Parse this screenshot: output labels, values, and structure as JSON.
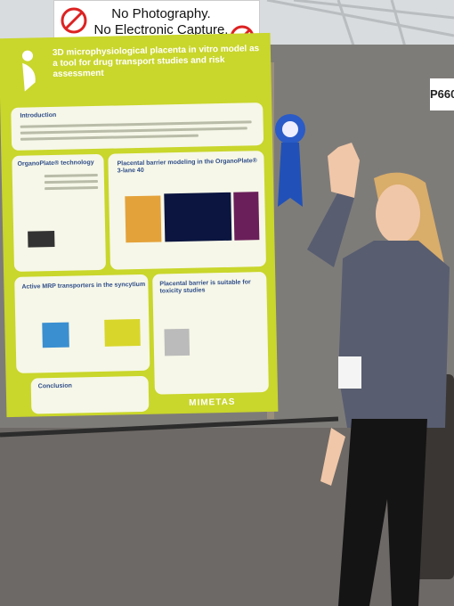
{
  "sign": {
    "lines": [
      "No Photography.",
      "No Electronic Capture."
    ]
  },
  "booth": "P660",
  "poster": {
    "title": "3D microphysiological placenta in vitro model as a tool for drug transport studies and risk assessment",
    "sections": [
      "Introduction",
      "OrganoPlate® technology",
      "Placental barrier modeling in the OrganoPlate® 3-lane 40",
      "Active MRP transporters in the syncytium",
      "Placental barrier is suitable for toxicity studies",
      "Conclusion"
    ],
    "logo": "MIMETAS"
  }
}
